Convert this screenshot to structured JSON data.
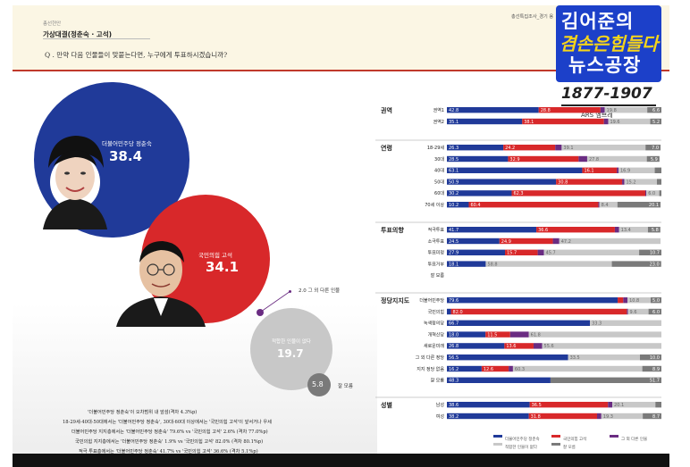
{
  "header": {
    "category": "총선현안",
    "subject": "가상대결(정춘숙 · 고석)",
    "question": "Q . 만약 다음 인물들이 맞붙는다면, 누구에게 투표하시겠습니까?",
    "survey_title": "총선특집조사_경기 용"
  },
  "brand": {
    "line1": "김어준의",
    "line2": "겸손은힘들다",
    "line3": "뉴스공장",
    "years": "1877-1907",
    "method": "ARS 엠브레"
  },
  "colors": {
    "blue": "#203a99",
    "red": "#d8282a",
    "purple": "#6a2c82",
    "light_gray": "#c8c8c8",
    "dark_gray": "#7a7a7a"
  },
  "bubbles": {
    "dem": {
      "label": "더불어민주당 정춘숙",
      "value": "38.4"
    },
    "ppp": {
      "label": "국민의힘 고석",
      "value": "34.1"
    },
    "other": {
      "label": "2.0 그 외 다른 인물"
    },
    "none": {
      "label": "적합한 인물이 없다",
      "value": "19.7"
    },
    "dunno": {
      "value": "5.8",
      "label": "잘 모름"
    }
  },
  "notes": [
    "'더불어민주당 정춘숙'이 오차범위 내 앞섬(격차 4.3%p)",
    "18-29세·40대·50대에서는 '더불어민주당 정춘숙', 30대·60대 이상에서는 '국민의힘 고석'이 앞서거나 우세",
    "더불어민주당 지지층에서는 '더불어민주당 정춘숙' 79.6% vs '국민의힘 고석' 2.6% (격차 77.0%p)",
    "국민의힘 지지층에서는 '더불어민주당 정춘숙' 1.9% vs '국민의힘 고석' 82.0% (격차 80.1%p)",
    "적극 투표층에서는 '더불어민주당 정춘숙' 41.7% vs '국민의힘 고석' 36.6% (격차 5.1%p)"
  ],
  "legend": [
    "더불어민주당 정춘숙",
    "국민의힘 고석",
    "그 외 다른 인물",
    "적합한 인물이 없다",
    "잘 모름"
  ],
  "chart_data": {
    "type": "bar",
    "stacked": true,
    "orientation": "horizontal",
    "series": [
      {
        "name": "더불어민주당 정춘숙",
        "color": "#203a99"
      },
      {
        "name": "국민의힘 고석",
        "color": "#d8282a"
      },
      {
        "name": "그 외 다른 인물",
        "color": "#6a2c82"
      },
      {
        "name": "적합한 인물이 없다",
        "color": "#c8c8c8"
      },
      {
        "name": "잘 모름",
        "color": "#7a7a7a"
      }
    ],
    "groups": [
      {
        "name": "권역",
        "rows": [
          {
            "label": "권역1",
            "values": [
              42.8,
              28.8,
              2.0,
              19.8,
              6.6
            ]
          },
          {
            "label": "권역2",
            "values": [
              35.1,
              38.1,
              2.0,
              19.6,
              5.2
            ]
          }
        ]
      },
      {
        "name": "연령",
        "rows": [
          {
            "label": "18-29세",
            "values": [
              26.3,
              24.2,
              3.0,
              39.1,
              7.0
            ]
          },
          {
            "label": "30대",
            "values": [
              28.5,
              32.9,
              4.0,
              27.8,
              5.9
            ]
          },
          {
            "label": "40대",
            "values": [
              63.1,
              16.1,
              0.8,
              16.9,
              3.1
            ]
          },
          {
            "label": "50대",
            "values": [
              50.9,
              30.8,
              1.0,
              15.2,
              2.1
            ]
          },
          {
            "label": "60대",
            "values": [
              30.2,
              62.3,
              0.5,
              6.0,
              1.0
            ]
          },
          {
            "label": "70세 이상",
            "values": [
              10.2,
              60.4,
              0.5,
              8.4,
              20.1
            ]
          }
        ]
      },
      {
        "name": "투표의향",
        "rows": [
          {
            "label": "적극투표",
            "values": [
              41.7,
              36.6,
              2.0,
              13.4,
              5.8
            ]
          },
          {
            "label": "소극투표",
            "values": [
              24.5,
              24.9,
              3.0,
              47.2,
              0.0
            ]
          },
          {
            "label": "투표미정",
            "values": [
              27.9,
              15.7,
              3.0,
              45.7,
              10.7
            ]
          },
          {
            "label": "투표거부",
            "values": [
              18.1,
              0.0,
              0.0,
              58.8,
              23.0
            ]
          },
          {
            "label": "잘 모름",
            "values": [
              0.0,
              0.0,
              0.0,
              0.0,
              0.0
            ]
          }
        ]
      },
      {
        "name": "정당지지도",
        "rows": [
          {
            "label": "더불어민주당",
            "values": [
              79.6,
              2.6,
              2.0,
              10.8,
              5.0
            ]
          },
          {
            "label": "국민의힘",
            "values": [
              1.9,
              82.0,
              0.5,
              9.6,
              6.0
            ]
          },
          {
            "label": "녹색정의당",
            "values": [
              66.7,
              0.0,
              0.0,
              33.3,
              0.0
            ]
          },
          {
            "label": "개혁신당",
            "values": [
              18.0,
              11.5,
              8.7,
              61.8,
              0.0
            ]
          },
          {
            "label": "새로운미래",
            "values": [
              26.8,
              13.6,
              4.0,
              55.6,
              0.0
            ]
          },
          {
            "label": "그 외 다른 정당",
            "values": [
              56.5,
              0.0,
              0.0,
              33.5,
              10.0
            ]
          },
          {
            "label": "지지 정당 없음",
            "values": [
              16.2,
              12.6,
              2.0,
              60.3,
              8.9
            ]
          },
          {
            "label": "잘 모름",
            "values": [
              48.3,
              0.0,
              0.0,
              0.0,
              51.7
            ]
          }
        ]
      },
      {
        "name": "성별",
        "rows": [
          {
            "label": "남성",
            "values": [
              38.6,
              36.5,
              2.0,
              20.1,
              2.8
            ]
          },
          {
            "label": "여성",
            "values": [
              38.2,
              31.8,
              2.0,
              19.3,
              8.7
            ]
          }
        ]
      }
    ],
    "xlim": [
      0,
      100
    ]
  }
}
